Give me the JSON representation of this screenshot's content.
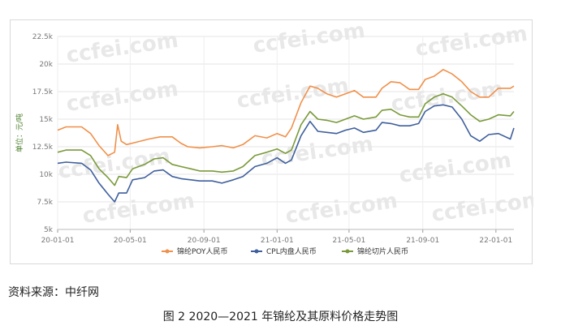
{
  "chart_data": {
    "type": "line",
    "title": "",
    "xlabel": "",
    "ylabel": "单位：元/吨",
    "ylim": [
      5000,
      22500
    ],
    "y_ticks": [
      5000,
      7500,
      10000,
      12500,
      15000,
      17500,
      20000,
      22500
    ],
    "y_tick_labels": [
      "5k",
      "7.5k",
      "10k",
      "12.5k",
      "15k",
      "17.5k",
      "20k",
      "22.5k"
    ],
    "x_range": [
      "2020-01-01",
      "2022-01-31"
    ],
    "x_ticks": [
      "2020-01-01",
      "2020-05-01",
      "2020-09-01",
      "2021-01-01",
      "2021-05-01",
      "2021-09-01",
      "2022-01-01"
    ],
    "x_tick_labels": [
      "20-01-01",
      "20-05-01",
      "20-09-01",
      "21-01-01",
      "21-05-01",
      "21-09-01",
      "22-01-01"
    ],
    "grid": true,
    "legend_position": "bottom",
    "watermark": "ccfei.com",
    "series": [
      {
        "name": "锦纶POY人民币",
        "color": "#f0904a",
        "points": [
          [
            "2020-01-01",
            14000
          ],
          [
            "2020-01-15",
            14300
          ],
          [
            "2020-02-10",
            14300
          ],
          [
            "2020-02-25",
            13700
          ],
          [
            "2020-03-10",
            12600
          ],
          [
            "2020-03-25",
            11700
          ],
          [
            "2020-04-05",
            12000
          ],
          [
            "2020-04-10",
            14500
          ],
          [
            "2020-04-16",
            13000
          ],
          [
            "2020-04-25",
            12700
          ],
          [
            "2020-05-10",
            12900
          ],
          [
            "2020-06-01",
            13200
          ],
          [
            "2020-06-20",
            13400
          ],
          [
            "2020-07-10",
            13400
          ],
          [
            "2020-07-25",
            12800
          ],
          [
            "2020-08-05",
            12500
          ],
          [
            "2020-08-25",
            12400
          ],
          [
            "2020-09-15",
            12500
          ],
          [
            "2020-10-01",
            12600
          ],
          [
            "2020-10-20",
            12400
          ],
          [
            "2020-11-05",
            12700
          ],
          [
            "2020-11-25",
            13500
          ],
          [
            "2020-12-15",
            13300
          ],
          [
            "2021-01-01",
            13700
          ],
          [
            "2021-01-15",
            13400
          ],
          [
            "2021-01-25",
            14200
          ],
          [
            "2021-02-10",
            16500
          ],
          [
            "2021-02-25",
            18000
          ],
          [
            "2021-03-10",
            17800
          ],
          [
            "2021-03-25",
            17300
          ],
          [
            "2021-04-10",
            17000
          ],
          [
            "2021-04-25",
            17300
          ],
          [
            "2021-05-10",
            17600
          ],
          [
            "2021-05-25",
            17000
          ],
          [
            "2021-06-15",
            17000
          ],
          [
            "2021-06-25",
            17800
          ],
          [
            "2021-07-10",
            18400
          ],
          [
            "2021-07-25",
            18300
          ],
          [
            "2021-08-10",
            17700
          ],
          [
            "2021-08-25",
            17700
          ],
          [
            "2021-09-05",
            18600
          ],
          [
            "2021-09-20",
            18900
          ],
          [
            "2021-10-05",
            19500
          ],
          [
            "2021-10-20",
            19100
          ],
          [
            "2021-11-05",
            18400
          ],
          [
            "2021-11-20",
            17500
          ],
          [
            "2021-12-05",
            17000
          ],
          [
            "2021-12-20",
            17000
          ],
          [
            "2022-01-05",
            17800
          ],
          [
            "2022-01-25",
            17800
          ],
          [
            "2022-01-31",
            18000
          ]
        ]
      },
      {
        "name": "CPL内盘人民币",
        "color": "#3f5f9c",
        "points": [
          [
            "2020-01-01",
            11000
          ],
          [
            "2020-01-15",
            11100
          ],
          [
            "2020-02-10",
            11000
          ],
          [
            "2020-02-25",
            10400
          ],
          [
            "2020-03-10",
            9200
          ],
          [
            "2020-03-25",
            8200
          ],
          [
            "2020-04-05",
            7500
          ],
          [
            "2020-04-12",
            8300
          ],
          [
            "2020-04-25",
            8300
          ],
          [
            "2020-05-05",
            9500
          ],
          [
            "2020-05-25",
            9700
          ],
          [
            "2020-06-10",
            10300
          ],
          [
            "2020-06-25",
            10400
          ],
          [
            "2020-07-10",
            9800
          ],
          [
            "2020-07-25",
            9600
          ],
          [
            "2020-08-10",
            9500
          ],
          [
            "2020-08-25",
            9400
          ],
          [
            "2020-09-15",
            9400
          ],
          [
            "2020-10-01",
            9200
          ],
          [
            "2020-10-20",
            9500
          ],
          [
            "2020-11-05",
            9800
          ],
          [
            "2020-11-25",
            10700
          ],
          [
            "2020-12-15",
            11000
          ],
          [
            "2021-01-01",
            11500
          ],
          [
            "2021-01-15",
            11000
          ],
          [
            "2021-01-25",
            11300
          ],
          [
            "2021-02-10",
            13500
          ],
          [
            "2021-02-25",
            14800
          ],
          [
            "2021-03-10",
            13900
          ],
          [
            "2021-03-25",
            13800
          ],
          [
            "2021-04-10",
            13700
          ],
          [
            "2021-04-25",
            14000
          ],
          [
            "2021-05-10",
            14200
          ],
          [
            "2021-05-25",
            13800
          ],
          [
            "2021-06-15",
            14000
          ],
          [
            "2021-06-25",
            14700
          ],
          [
            "2021-07-10",
            14600
          ],
          [
            "2021-07-25",
            14400
          ],
          [
            "2021-08-10",
            14400
          ],
          [
            "2021-08-25",
            14600
          ],
          [
            "2021-09-05",
            15700
          ],
          [
            "2021-09-20",
            16200
          ],
          [
            "2021-10-05",
            16300
          ],
          [
            "2021-10-20",
            16100
          ],
          [
            "2021-11-05",
            15000
          ],
          [
            "2021-11-20",
            13500
          ],
          [
            "2021-12-05",
            13000
          ],
          [
            "2021-12-20",
            13600
          ],
          [
            "2022-01-05",
            13700
          ],
          [
            "2022-01-25",
            13200
          ],
          [
            "2022-01-31",
            14200
          ]
        ]
      },
      {
        "name": "锦纶切片人民币",
        "color": "#7a9a3a",
        "points": [
          [
            "2020-01-01",
            12000
          ],
          [
            "2020-01-15",
            12200
          ],
          [
            "2020-02-10",
            12200
          ],
          [
            "2020-02-25",
            11700
          ],
          [
            "2020-03-10",
            10500
          ],
          [
            "2020-03-25",
            9700
          ],
          [
            "2020-04-05",
            9000
          ],
          [
            "2020-04-12",
            9800
          ],
          [
            "2020-04-25",
            9700
          ],
          [
            "2020-05-05",
            10500
          ],
          [
            "2020-05-25",
            10900
          ],
          [
            "2020-06-10",
            11400
          ],
          [
            "2020-06-25",
            11500
          ],
          [
            "2020-07-10",
            10900
          ],
          [
            "2020-07-25",
            10700
          ],
          [
            "2020-08-10",
            10500
          ],
          [
            "2020-08-25",
            10300
          ],
          [
            "2020-09-15",
            10300
          ],
          [
            "2020-10-01",
            10200
          ],
          [
            "2020-10-20",
            10300
          ],
          [
            "2020-11-05",
            10700
          ],
          [
            "2020-11-25",
            11700
          ],
          [
            "2020-12-15",
            12000
          ],
          [
            "2021-01-01",
            12300
          ],
          [
            "2021-01-15",
            11900
          ],
          [
            "2021-01-25",
            12200
          ],
          [
            "2021-02-10",
            14500
          ],
          [
            "2021-02-25",
            15700
          ],
          [
            "2021-03-10",
            15000
          ],
          [
            "2021-03-25",
            14900
          ],
          [
            "2021-04-10",
            14700
          ],
          [
            "2021-04-25",
            15000
          ],
          [
            "2021-05-10",
            15300
          ],
          [
            "2021-05-25",
            15000
          ],
          [
            "2021-06-15",
            15200
          ],
          [
            "2021-06-25",
            15800
          ],
          [
            "2021-07-10",
            15900
          ],
          [
            "2021-07-25",
            15400
          ],
          [
            "2021-08-10",
            15200
          ],
          [
            "2021-08-25",
            15200
          ],
          [
            "2021-09-05",
            16400
          ],
          [
            "2021-09-20",
            17000
          ],
          [
            "2021-10-05",
            17300
          ],
          [
            "2021-10-20",
            17000
          ],
          [
            "2021-11-05",
            16200
          ],
          [
            "2021-11-20",
            15400
          ],
          [
            "2021-12-05",
            14800
          ],
          [
            "2021-12-20",
            15000
          ],
          [
            "2022-01-05",
            15400
          ],
          [
            "2022-01-25",
            15300
          ],
          [
            "2022-01-31",
            15700
          ]
        ]
      }
    ]
  },
  "source_text": "资料来源：中纤网",
  "caption": "图 2  2020—2021 年锦纶及其原料价格走势图"
}
